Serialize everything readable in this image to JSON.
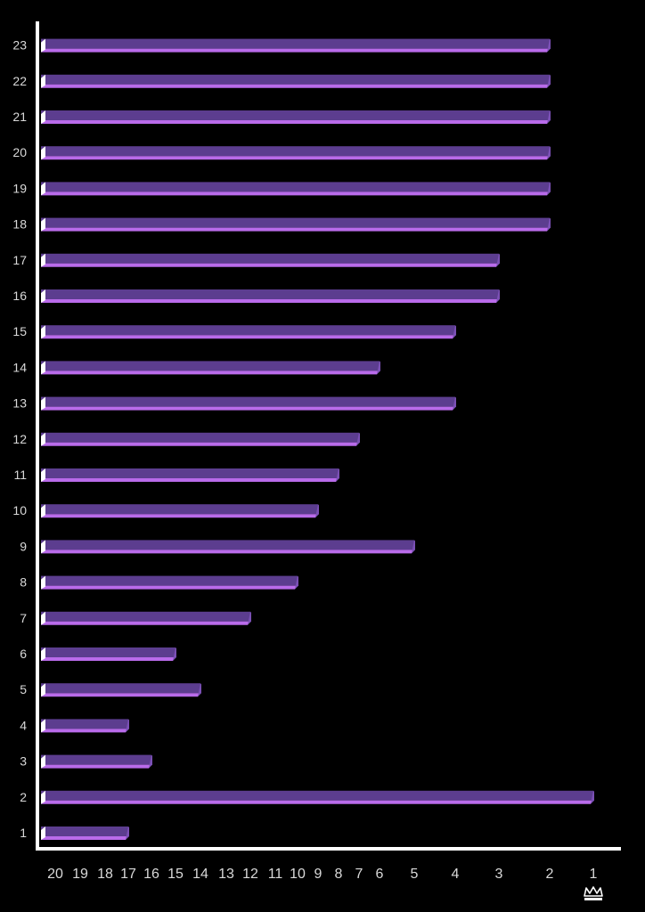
{
  "chart_data": {
    "type": "bar",
    "orientation": "horizontal",
    "categories": [
      "1",
      "2",
      "3",
      "4",
      "5",
      "6",
      "7",
      "8",
      "9",
      "10",
      "11",
      "12",
      "13",
      "14",
      "15",
      "16",
      "17",
      "18",
      "19",
      "20",
      "21",
      "22",
      "23"
    ],
    "values": [
      17,
      1,
      16,
      17,
      14,
      15,
      12,
      10,
      5,
      9,
      8,
      7,
      4,
      6,
      4,
      3,
      3,
      2,
      2,
      2,
      2,
      2,
      2
    ],
    "x_ticks": [
      20,
      19,
      18,
      17,
      16,
      15,
      14,
      13,
      12,
      11,
      10,
      9,
      8,
      7,
      6,
      5,
      4,
      3,
      2,
      1
    ],
    "x_axis": "reversed, non-linear rank scale",
    "title": "",
    "xlabel": "",
    "ylabel": "",
    "grid": false,
    "legend": "none",
    "colors": {
      "background": "#000000",
      "axis": "#ffffff",
      "bar_top": "#5c3d8f",
      "bar_bottom": "#b96bea",
      "bar_end": "#7b50b5",
      "bar_start": "#ffffff",
      "label": "#d9d9d9"
    },
    "bottom_icon": "crown-icon"
  }
}
